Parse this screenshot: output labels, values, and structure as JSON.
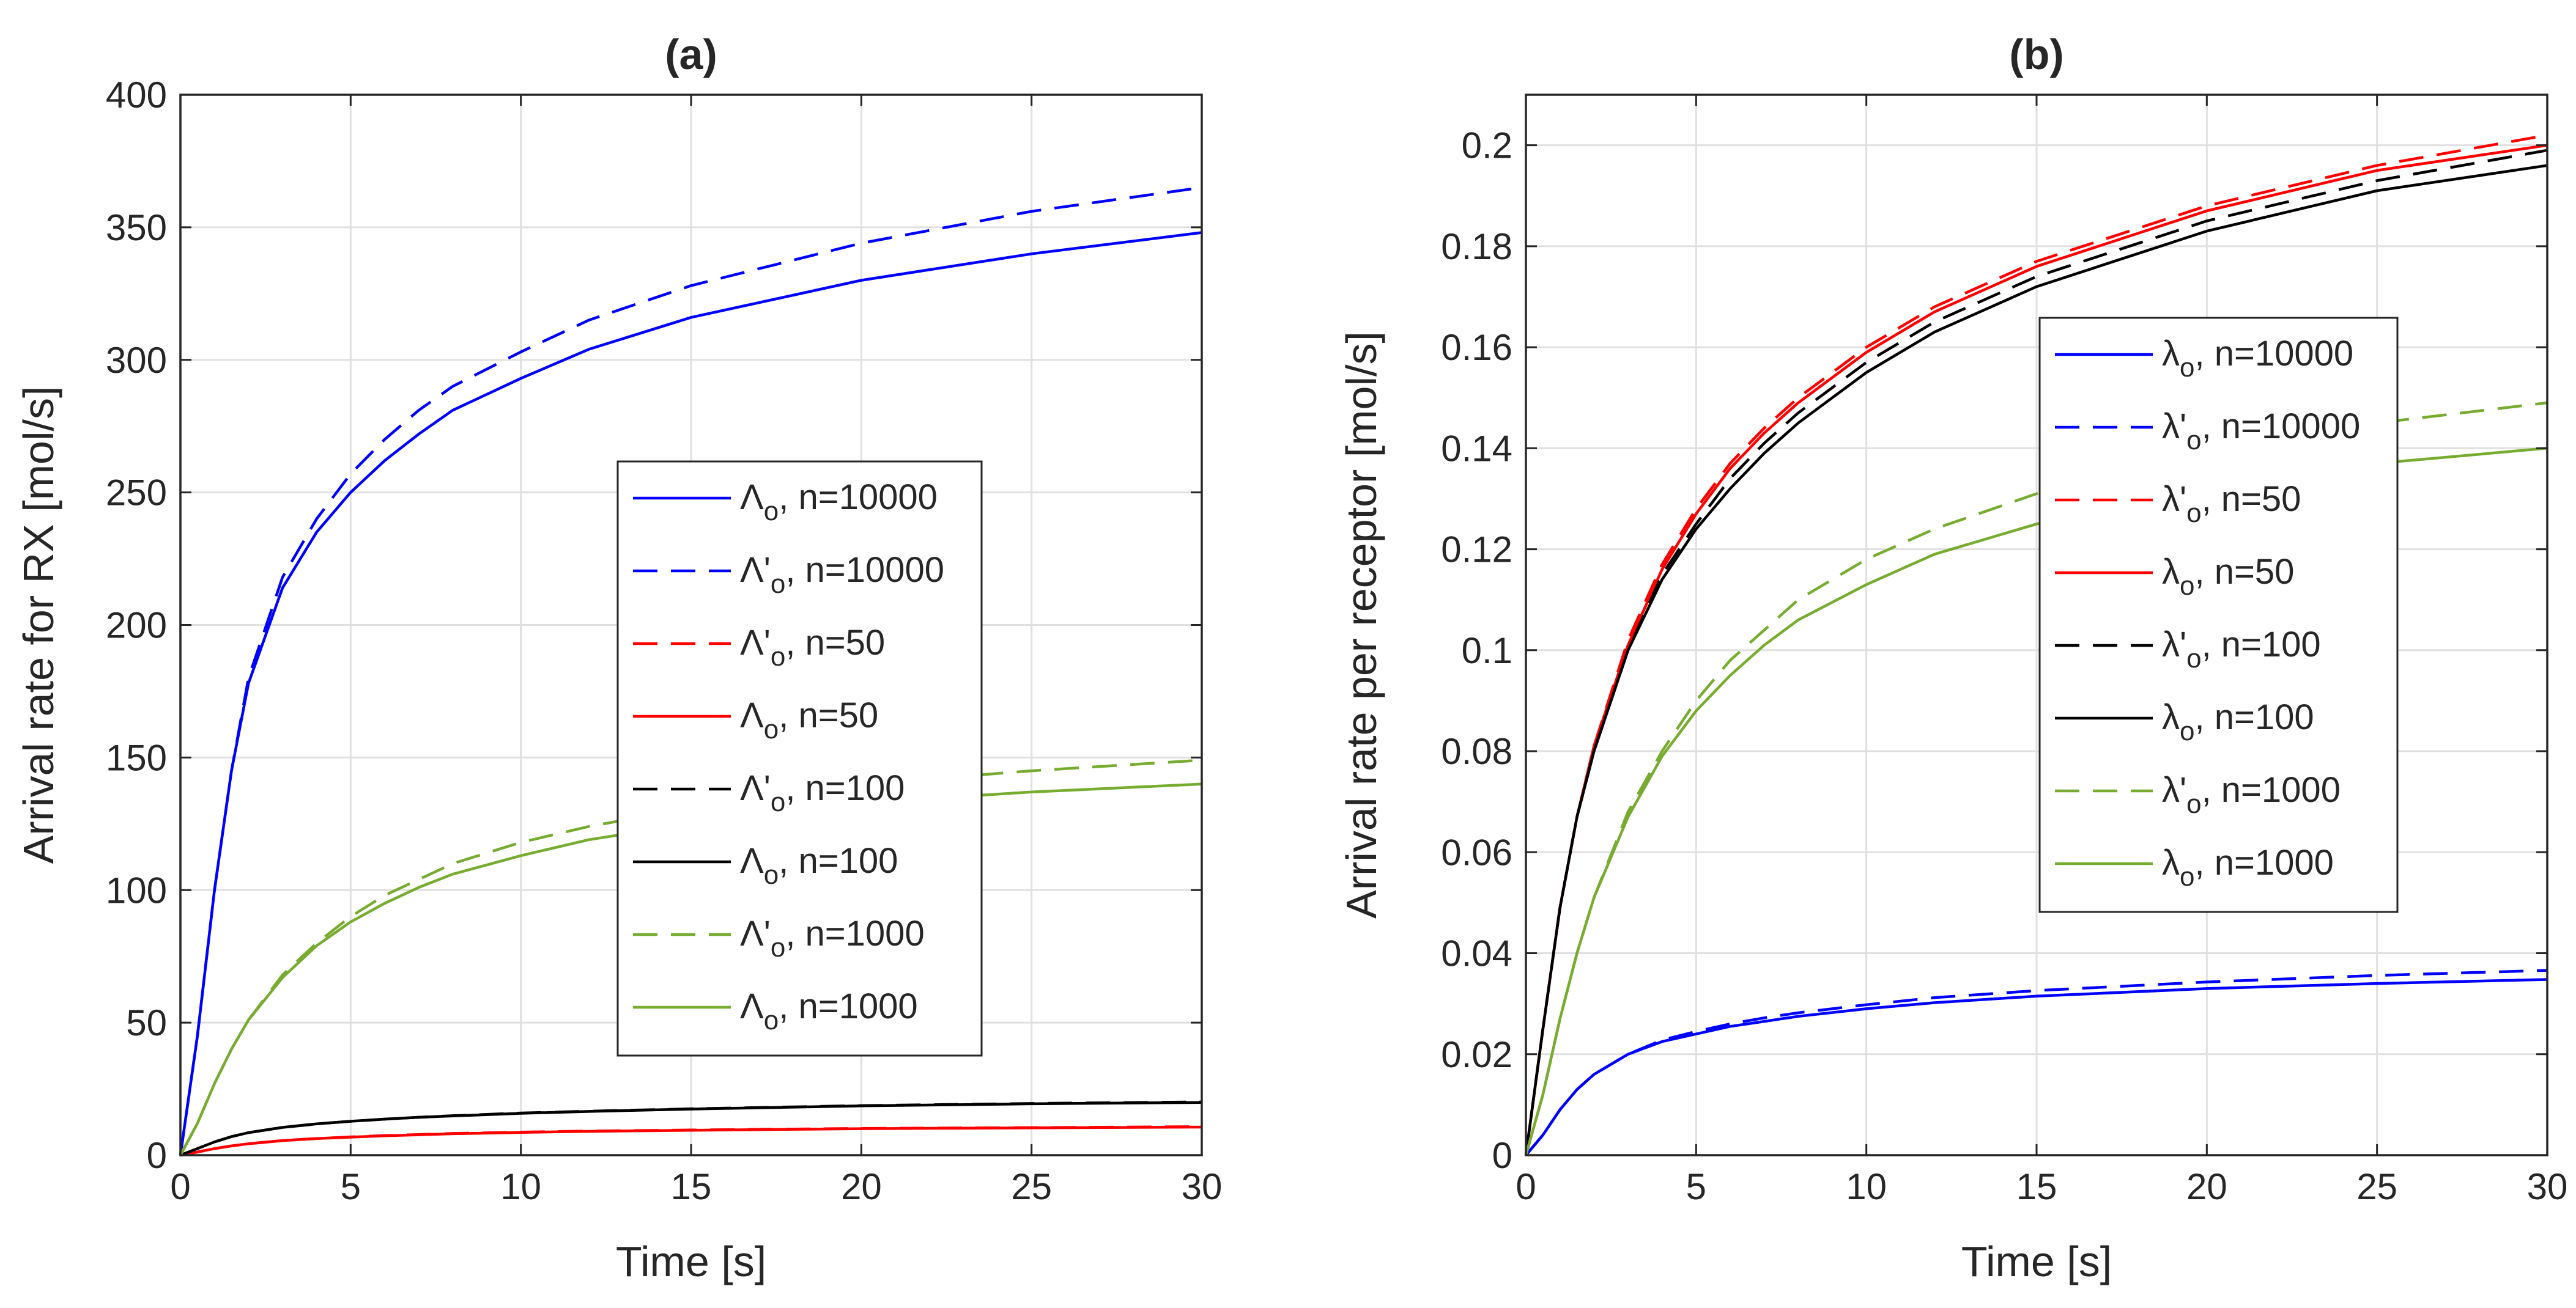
{
  "figure": {
    "panel_count": 2
  },
  "chart_data": [
    {
      "type": "line",
      "title": "(a)",
      "xlabel": "Time [s]",
      "ylabel": "Arrival rate for RX [mol/s]",
      "xlim": [
        0,
        30
      ],
      "ylim": [
        0,
        400
      ],
      "xticks": [
        0,
        5,
        10,
        15,
        20,
        25,
        30
      ],
      "yticks": [
        0,
        50,
        100,
        150,
        200,
        250,
        300,
        350,
        400
      ],
      "grid": true,
      "legend_position": "center-right",
      "x": [
        0,
        0.5,
        1,
        1.5,
        2,
        3,
        4,
        5,
        6,
        7,
        8,
        10,
        12,
        15,
        20,
        25,
        30
      ],
      "series": [
        {
          "symbol": "Λ",
          "prime": false,
          "sub": "o",
          "label": ", n=10000",
          "color": "#0000ff",
          "dash": false,
          "values": [
            0,
            45,
            100,
            145,
            178,
            214,
            235,
            250,
            262,
            272,
            281,
            293,
            304,
            316,
            330,
            340,
            348
          ]
        },
        {
          "symbol": "Λ",
          "prime": true,
          "sub": "o",
          "label": ", n=10000",
          "color": "#0000ff",
          "dash": true,
          "values": [
            0,
            45,
            100,
            145,
            180,
            218,
            240,
            257,
            270,
            281,
            290,
            303,
            315,
            328,
            344,
            356,
            365
          ]
        },
        {
          "symbol": "Λ",
          "prime": true,
          "sub": "o",
          "label": ", n=50",
          "color": "#ff0000",
          "dash": true,
          "values": [
            0,
            1.2,
            2.5,
            3.5,
            4.3,
            5.5,
            6.3,
            6.9,
            7.4,
            7.8,
            8.2,
            8.7,
            9.1,
            9.5,
            10.1,
            10.4,
            10.8
          ]
        },
        {
          "symbol": "Λ",
          "prime": false,
          "sub": "o",
          "label": ", n=50",
          "color": "#ff0000",
          "dash": false,
          "values": [
            0,
            1.2,
            2.5,
            3.5,
            4.3,
            5.5,
            6.3,
            6.8,
            7.3,
            7.7,
            8.1,
            8.6,
            9.0,
            9.4,
            10.0,
            10.3,
            10.6
          ]
        },
        {
          "symbol": "Λ",
          "prime": true,
          "sub": "o",
          "label": ", n=100",
          "color": "#000000",
          "dash": true,
          "values": [
            0,
            2.5,
            5,
            7,
            8.5,
            10.5,
            11.8,
            12.8,
            13.6,
            14.3,
            14.9,
            15.9,
            16.6,
            17.5,
            18.7,
            19.5,
            20.1
          ]
        },
        {
          "symbol": "Λ",
          "prime": false,
          "sub": "o",
          "label": ", n=100",
          "color": "#000000",
          "dash": false,
          "values": [
            0,
            2.5,
            5,
            7,
            8.5,
            10.5,
            11.8,
            12.8,
            13.6,
            14.3,
            14.8,
            15.8,
            16.5,
            17.4,
            18.6,
            19.4,
            19.9
          ]
        },
        {
          "symbol": "Λ",
          "prime": true,
          "sub": "o",
          "label": ", n=1000",
          "color": "#77ac30",
          "dash": true,
          "values": [
            0,
            12,
            27,
            40,
            51,
            68,
            80,
            90,
            98,
            104,
            110,
            118,
            124,
            131,
            140,
            145,
            149
          ]
        },
        {
          "symbol": "Λ",
          "prime": false,
          "sub": "o",
          "label": ", n=1000",
          "color": "#77ac30",
          "dash": false,
          "values": [
            0,
            12,
            27,
            40,
            51,
            67,
            79,
            88,
            95,
            101,
            106,
            113,
            119,
            125,
            133,
            137,
            140
          ]
        }
      ]
    },
    {
      "type": "line",
      "title": "(b)",
      "xlabel": "Time [s]",
      "ylabel": "Arrival rate per receptor [mol/s]",
      "xlim": [
        0,
        30
      ],
      "ylim": [
        0,
        0.21
      ],
      "xticks": [
        0,
        5,
        10,
        15,
        20,
        25,
        30
      ],
      "yticks": [
        0,
        0.02,
        0.04,
        0.06,
        0.08,
        0.1,
        0.12,
        0.14,
        0.16,
        0.18,
        0.2
      ],
      "grid": true,
      "legend_position": "upper-center",
      "x": [
        0,
        0.5,
        1,
        1.5,
        2,
        3,
        4,
        5,
        6,
        7,
        8,
        10,
        12,
        15,
        20,
        25,
        30
      ],
      "series": [
        {
          "symbol": "λ",
          "prime": false,
          "sub": "o",
          "label": ", n=10000",
          "color": "#0000ff",
          "dash": false,
          "values": [
            0,
            0.004,
            0.009,
            0.013,
            0.016,
            0.02,
            0.0225,
            0.024,
            0.0255,
            0.0265,
            0.0275,
            0.029,
            0.0302,
            0.0315,
            0.033,
            0.034,
            0.0348
          ]
        },
        {
          "symbol": "λ",
          "prime": true,
          "sub": "o",
          "label": ", n=10000",
          "color": "#0000ff",
          "dash": true,
          "values": [
            0,
            0.004,
            0.009,
            0.013,
            0.016,
            0.02,
            0.0228,
            0.0245,
            0.026,
            0.0272,
            0.0282,
            0.0298,
            0.0312,
            0.0326,
            0.0343,
            0.0356,
            0.0366
          ]
        },
        {
          "symbol": "λ",
          "prime": true,
          "sub": "o",
          "label": ", n=50",
          "color": "#ff0000",
          "dash": true,
          "values": [
            0,
            0.025,
            0.049,
            0.067,
            0.081,
            0.102,
            0.117,
            0.128,
            0.137,
            0.144,
            0.15,
            0.16,
            0.168,
            0.177,
            0.188,
            0.196,
            0.202
          ]
        },
        {
          "symbol": "λ",
          "prime": false,
          "sub": "o",
          "label": ", n=50",
          "color": "#ff0000",
          "dash": false,
          "values": [
            0,
            0.025,
            0.049,
            0.067,
            0.081,
            0.101,
            0.116,
            0.127,
            0.136,
            0.143,
            0.149,
            0.159,
            0.167,
            0.176,
            0.187,
            0.195,
            0.2
          ]
        },
        {
          "symbol": "λ",
          "prime": true,
          "sub": "o",
          "label": ", n=100",
          "color": "#000000",
          "dash": true,
          "values": [
            0,
            0.025,
            0.049,
            0.067,
            0.08,
            0.1,
            0.115,
            0.125,
            0.134,
            0.141,
            0.147,
            0.157,
            0.165,
            0.174,
            0.185,
            0.193,
            0.199
          ]
        },
        {
          "symbol": "λ",
          "prime": false,
          "sub": "o",
          "label": ", n=100",
          "color": "#000000",
          "dash": false,
          "values": [
            0,
            0.025,
            0.049,
            0.067,
            0.08,
            0.1,
            0.114,
            0.124,
            0.132,
            0.139,
            0.145,
            0.155,
            0.163,
            0.172,
            0.183,
            0.191,
            0.196
          ]
        },
        {
          "symbol": "λ",
          "prime": true,
          "sub": "o",
          "label": ", n=1000",
          "color": "#77ac30",
          "dash": true,
          "values": [
            0,
            0.012,
            0.027,
            0.04,
            0.051,
            0.068,
            0.08,
            0.09,
            0.098,
            0.104,
            0.11,
            0.118,
            0.124,
            0.131,
            0.14,
            0.145,
            0.149
          ]
        },
        {
          "symbol": "λ",
          "prime": false,
          "sub": "o",
          "label": ", n=1000",
          "color": "#77ac30",
          "dash": false,
          "values": [
            0,
            0.012,
            0.027,
            0.04,
            0.051,
            0.067,
            0.079,
            0.088,
            0.095,
            0.101,
            0.106,
            0.113,
            0.119,
            0.125,
            0.133,
            0.137,
            0.14
          ]
        }
      ]
    }
  ]
}
